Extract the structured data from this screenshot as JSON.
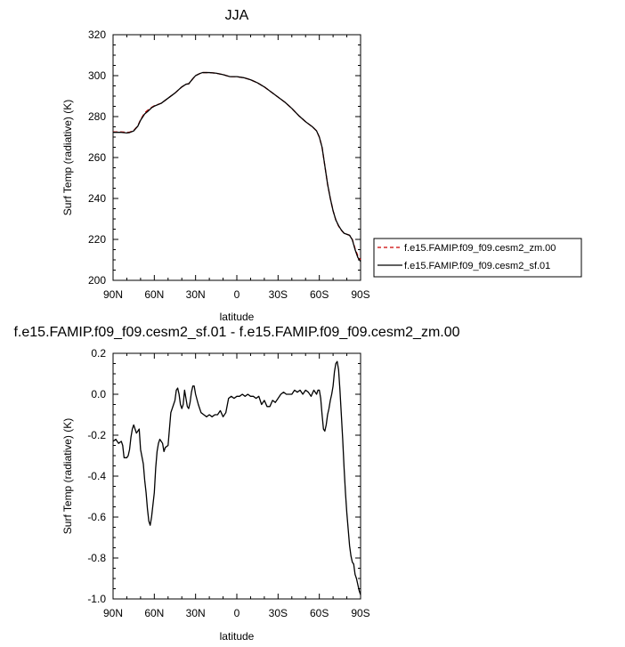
{
  "chart_data": [
    {
      "type": "line",
      "title": "JJA",
      "xlabel": "latitude",
      "ylabel": "Surf Temp (radiative) (K)",
      "xlim": [
        90,
        -90
      ],
      "ylim": [
        200,
        320
      ],
      "xticks": [
        90,
        60,
        30,
        0,
        -30,
        -60,
        -90
      ],
      "xtick_labels": [
        "90N",
        "60N",
        "30N",
        "0",
        "30S",
        "60S",
        "90S"
      ],
      "yticks": [
        200,
        220,
        240,
        260,
        280,
        300,
        320
      ],
      "ytick_labels": [
        "200",
        "220",
        "240",
        "260",
        "280",
        "300",
        "320"
      ],
      "legend": "right",
      "series": [
        {
          "name": "f.e15.FAMIP.f09_f09.cesm2_zm.00",
          "color": "#cc0000",
          "dash": "dashed",
          "x": [
            90,
            84,
            80,
            78,
            75,
            72,
            70,
            67,
            65,
            62,
            60,
            55,
            50,
            45,
            40,
            37,
            35,
            32,
            30,
            27,
            25,
            20,
            15,
            10,
            5,
            0,
            -5,
            -10,
            -15,
            -20,
            -25,
            -30,
            -35,
            -40,
            -45,
            -50,
            -55,
            -58,
            -60,
            -62,
            -64,
            -66,
            -68,
            -70,
            -72,
            -74,
            -76,
            -78,
            -80,
            -82,
            -84,
            -86,
            -88,
            -90
          ],
          "y": [
            272.5,
            272.5,
            272.3,
            272.4,
            273.2,
            275.5,
            278.5,
            281.8,
            283.0,
            284.5,
            285.3,
            286.5,
            289.0,
            291.5,
            294.5,
            295.8,
            296.0,
            298.5,
            300.0,
            301.0,
            301.5,
            301.5,
            301.2,
            300.5,
            299.5,
            299.5,
            299.0,
            298.0,
            296.5,
            294.5,
            292.0,
            289.5,
            287.0,
            284.0,
            280.5,
            277.5,
            275.0,
            273.0,
            270.0,
            265.0,
            256.0,
            247.0,
            240.0,
            234.0,
            229.5,
            226.5,
            224.5,
            223.0,
            222.5,
            222.0,
            220.0,
            215.5,
            212.0,
            210.0
          ]
        },
        {
          "name": "f.e15.FAMIP.f09_f09.cesm2_sf.01",
          "color": "#000000",
          "dash": "solid",
          "x": [
            90,
            84,
            80,
            78,
            75,
            72,
            70,
            67,
            65,
            62,
            60,
            55,
            50,
            45,
            40,
            37,
            35,
            32,
            30,
            27,
            25,
            20,
            15,
            10,
            5,
            0,
            -5,
            -10,
            -15,
            -20,
            -25,
            -30,
            -35,
            -40,
            -45,
            -50,
            -55,
            -58,
            -60,
            -62,
            -64,
            -66,
            -68,
            -70,
            -72,
            -74,
            -76,
            -78,
            -80,
            -82,
            -84,
            -86,
            -88,
            -90
          ],
          "y": [
            272.3,
            272.3,
            272.0,
            272.2,
            273.0,
            275.3,
            278.2,
            281.3,
            282.4,
            284.3,
            285.1,
            286.5,
            289.0,
            291.5,
            294.5,
            295.8,
            296.0,
            298.5,
            300.0,
            301.0,
            301.5,
            301.5,
            301.2,
            300.5,
            299.5,
            299.5,
            299.0,
            298.0,
            296.5,
            294.5,
            292.0,
            289.5,
            287.0,
            284.0,
            280.5,
            277.5,
            275.0,
            273.0,
            270.0,
            265.0,
            256.0,
            247.0,
            240.0,
            234.0,
            229.5,
            226.7,
            224.6,
            223.0,
            222.5,
            222.0,
            219.8,
            215.0,
            211.2,
            209.2
          ]
        }
      ]
    },
    {
      "type": "line",
      "title": "f.e15.FAMIP.f09_f09.cesm2_sf.01 - f.e15.FAMIP.f09_f09.cesm2_zm.00",
      "xlabel": "latitude",
      "ylabel": "Surf Temp (radiative) (K)",
      "xlim": [
        90,
        -90
      ],
      "ylim": [
        -1.0,
        0.2
      ],
      "xticks": [
        90,
        60,
        30,
        0,
        -30,
        -60,
        -90
      ],
      "xtick_labels": [
        "90N",
        "60N",
        "30N",
        "0",
        "30S",
        "60S",
        "90S"
      ],
      "yticks": [
        -1.0,
        -0.8,
        -0.6,
        -0.4,
        -0.2,
        0.0,
        0.2
      ],
      "ytick_labels": [
        "-1.0",
        "-0.8",
        "-0.6",
        "-0.4",
        "-0.2",
        "0.0",
        "0.2"
      ],
      "series": [
        {
          "color": "#000000",
          "dash": "solid",
          "x": [
            90,
            88,
            86,
            84,
            83,
            82,
            80,
            79,
            78,
            77,
            76,
            75,
            73,
            71,
            70,
            68,
            67,
            66,
            65,
            64,
            63,
            62,
            60,
            59,
            58,
            57,
            56,
            55,
            54,
            53,
            52,
            50,
            48,
            46,
            45,
            44,
            43,
            42,
            41,
            40,
            39,
            38,
            37,
            36,
            35,
            34,
            33,
            32,
            31,
            30,
            28,
            26,
            24,
            22,
            20,
            18,
            16,
            14,
            12,
            10,
            8,
            6,
            4,
            2,
            0,
            -2,
            -4,
            -6,
            -8,
            -10,
            -12,
            -14,
            -16,
            -18,
            -20,
            -22,
            -24,
            -26,
            -28,
            -30,
            -32,
            -34,
            -36,
            -38,
            -40,
            -42,
            -44,
            -46,
            -48,
            -50,
            -52,
            -54,
            -56,
            -57,
            -58,
            -59,
            -60,
            -61,
            -62,
            -63,
            -64,
            -65,
            -66,
            -67,
            -68,
            -69,
            -70,
            -71,
            -72,
            -73,
            -74,
            -75,
            -76,
            -77,
            -78,
            -79,
            -80,
            -81,
            -82,
            -83,
            -84,
            -85,
            -86,
            -87,
            -88,
            -89,
            -90
          ],
          "y": [
            -0.23,
            -0.22,
            -0.24,
            -0.23,
            -0.25,
            -0.31,
            -0.31,
            -0.3,
            -0.27,
            -0.21,
            -0.17,
            -0.15,
            -0.19,
            -0.17,
            -0.27,
            -0.34,
            -0.42,
            -0.48,
            -0.56,
            -0.62,
            -0.64,
            -0.6,
            -0.48,
            -0.36,
            -0.28,
            -0.24,
            -0.22,
            -0.23,
            -0.24,
            -0.28,
            -0.26,
            -0.25,
            -0.09,
            -0.05,
            -0.03,
            0.02,
            0.03,
            0.0,
            -0.05,
            -0.07,
            -0.05,
            0.02,
            -0.02,
            -0.06,
            -0.07,
            -0.04,
            0.01,
            0.04,
            0.04,
            0.0,
            -0.05,
            -0.09,
            -0.1,
            -0.11,
            -0.1,
            -0.11,
            -0.1,
            -0.1,
            -0.08,
            -0.11,
            -0.09,
            -0.02,
            -0.01,
            -0.02,
            -0.01,
            -0.01,
            0.0,
            -0.01,
            0.0,
            -0.01,
            -0.01,
            -0.02,
            -0.01,
            -0.05,
            -0.03,
            -0.06,
            -0.06,
            -0.03,
            -0.04,
            -0.02,
            0.0,
            0.01,
            0.0,
            0.0,
            0.0,
            0.02,
            0.01,
            0.02,
            0.0,
            0.02,
            0.01,
            -0.01,
            0.02,
            0.01,
            0.0,
            0.02,
            0.02,
            -0.02,
            -0.1,
            -0.17,
            -0.18,
            -0.15,
            -0.1,
            -0.07,
            -0.03,
            0.0,
            0.04,
            0.11,
            0.15,
            0.16,
            0.12,
            0.02,
            -0.1,
            -0.22,
            -0.36,
            -0.48,
            -0.58,
            -0.66,
            -0.74,
            -0.79,
            -0.82,
            -0.83,
            -0.88,
            -0.9,
            -0.93,
            -0.96,
            -0.98
          ]
        }
      ]
    }
  ]
}
